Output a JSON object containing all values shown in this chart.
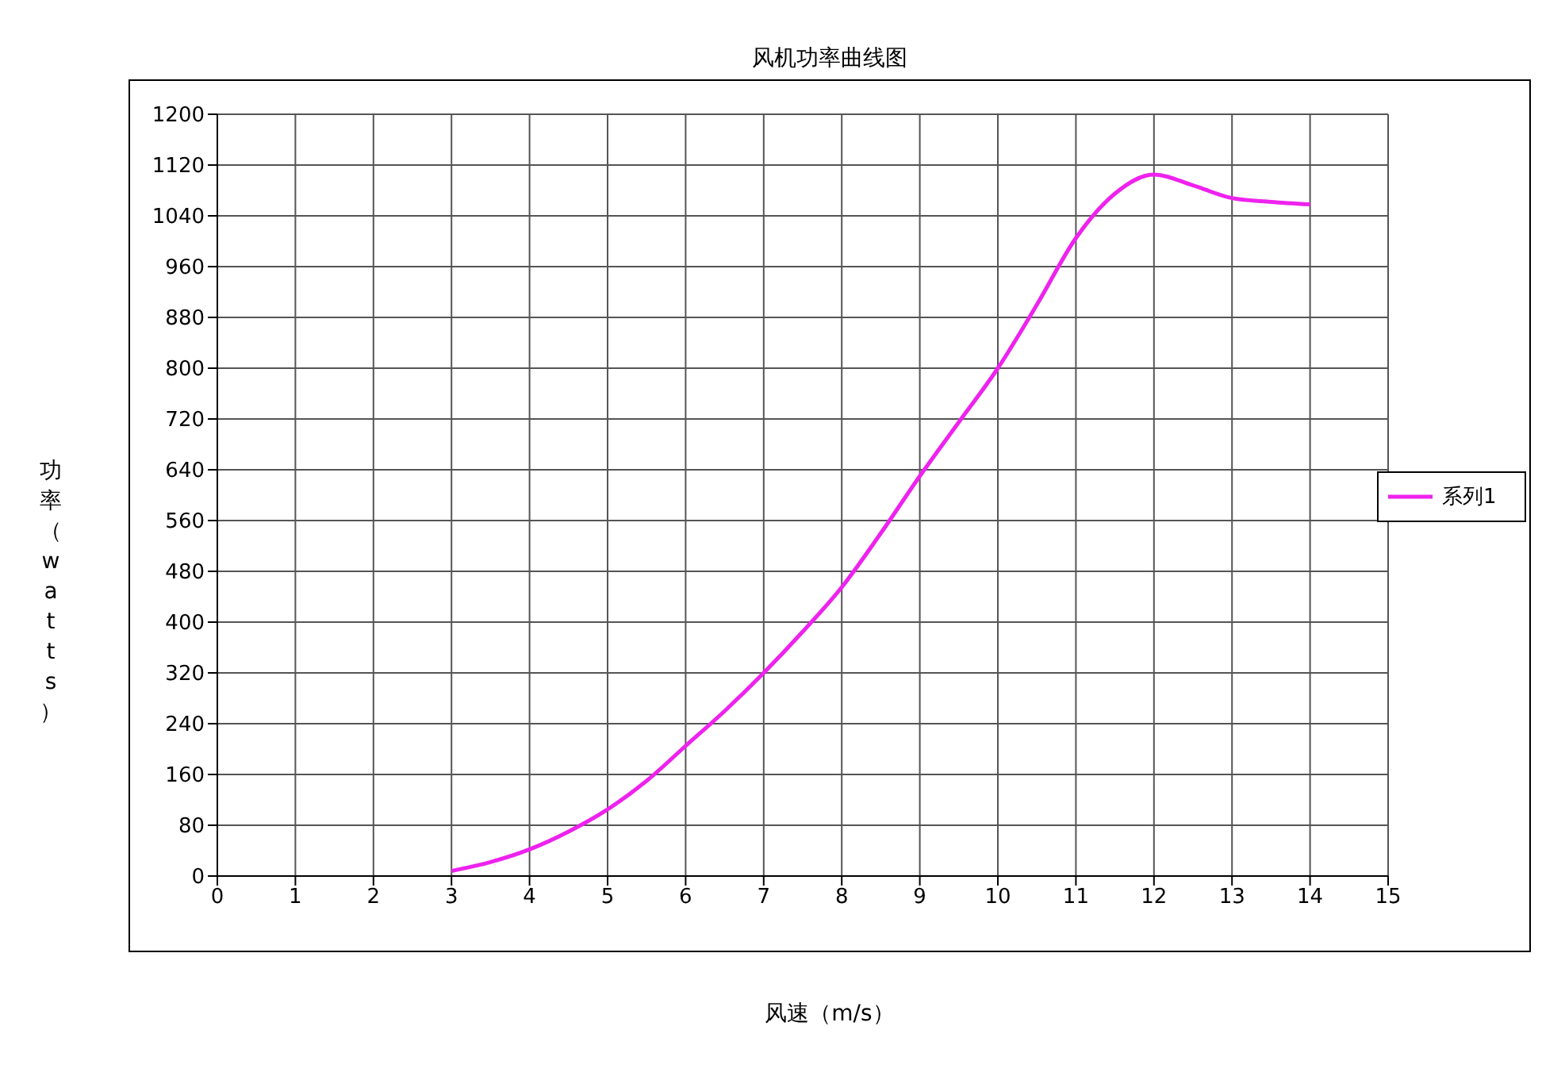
{
  "chart_data": {
    "type": "line",
    "title": "风机功率曲线图",
    "xlabel": "风速（m/s）",
    "ylabel": "功率（watts）",
    "x": [
      3,
      3.5,
      4,
      4.5,
      5,
      5.5,
      6,
      6.5,
      7,
      7.5,
      8,
      8.5,
      9,
      9.5,
      10,
      10.5,
      11,
      11.5,
      12,
      12.5,
      13,
      13.5,
      14
    ],
    "series": [
      {
        "name": "系列1",
        "color": "#ee22ee",
        "values": [
          8,
          22,
          42,
          70,
          105,
          150,
          205,
          260,
          320,
          385,
          455,
          540,
          630,
          715,
          800,
          900,
          1005,
          1075,
          1105,
          1088,
          1068,
          1062,
          1058
        ]
      }
    ],
    "xlim": [
      0,
      15
    ],
    "xticks": [
      0,
      1,
      2,
      3,
      4,
      5,
      6,
      7,
      8,
      9,
      10,
      11,
      12,
      13,
      14,
      15
    ],
    "ylim": [
      0,
      1200
    ],
    "yticks": [
      0,
      80,
      160,
      240,
      320,
      400,
      480,
      560,
      640,
      720,
      800,
      880,
      960,
      1040,
      1120,
      1200
    ],
    "grid": true,
    "legend": "right",
    "marker": "none",
    "line_style": "solid"
  }
}
